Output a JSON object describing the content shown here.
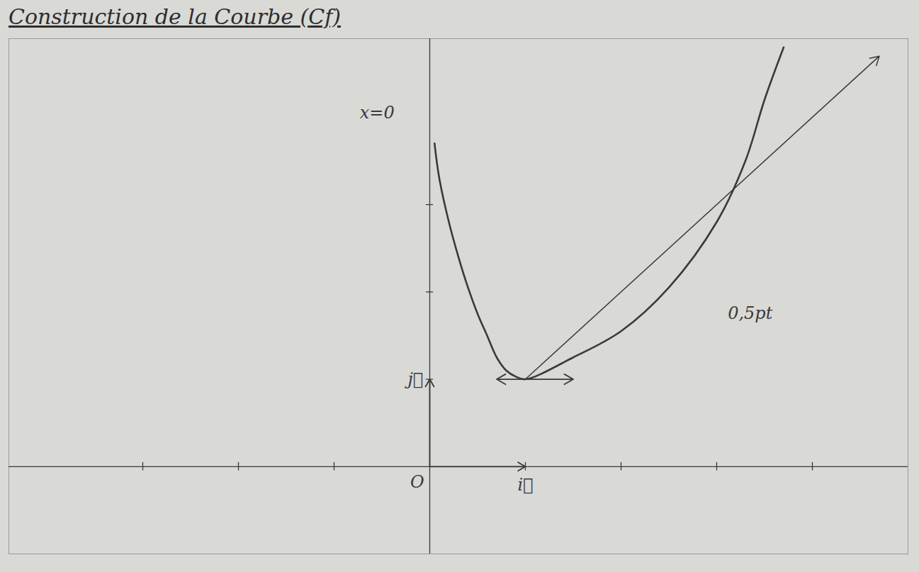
{
  "chart_data": {
    "type": "line",
    "title": "Construction de la Courbe (Cf)",
    "color": "#3a3a3a",
    "series": [
      {
        "type": "line",
        "marker": "none",
        "x": [
          0.05,
          0.1,
          0.2,
          0.3,
          0.4,
          0.5,
          0.6,
          0.7,
          0.8,
          0.9,
          1,
          1.5,
          2,
          2.5,
          3,
          3.3,
          3.5,
          3.7
        ],
        "values": [
          3.7,
          3.3,
          2.8,
          2.4,
          2.05,
          1.75,
          1.5,
          1.25,
          1.1,
          1.03,
          1,
          1.25,
          1.55,
          2.05,
          2.8,
          3.5,
          4.2,
          4.8
        ]
      },
      {
        "type": "line",
        "marker": "arrow",
        "x": [
          1,
          4.7
        ],
        "values": [
          1,
          4.7
        ]
      },
      {
        "type": "line",
        "marker": "double_arrow",
        "x": [
          0.7,
          1.5
        ],
        "values": [
          1,
          1
        ]
      }
    ],
    "vectors": [
      {
        "label": "j⃗",
        "x": [
          0,
          0
        ],
        "y": [
          0,
          1
        ]
      },
      {
        "label": "i⃗",
        "x": [
          0,
          1
        ],
        "y": [
          0,
          0
        ]
      }
    ],
    "annotations": [
      {
        "text": "x=0",
        "x": -0.55,
        "y": 4.05
      },
      {
        "text": "O",
        "x": -0.13,
        "y": -0.18
      },
      {
        "text": "0,5pt",
        "x": 3.35,
        "y": 1.75
      }
    ],
    "xlim": [
      -4.4,
      5
    ],
    "ylim": [
      -1,
      4.9
    ],
    "xticks": [
      -3,
      -2,
      -1,
      1,
      2,
      3,
      4
    ],
    "yticks": [
      1,
      2,
      3
    ],
    "tick_labels": false,
    "grid": false
  }
}
